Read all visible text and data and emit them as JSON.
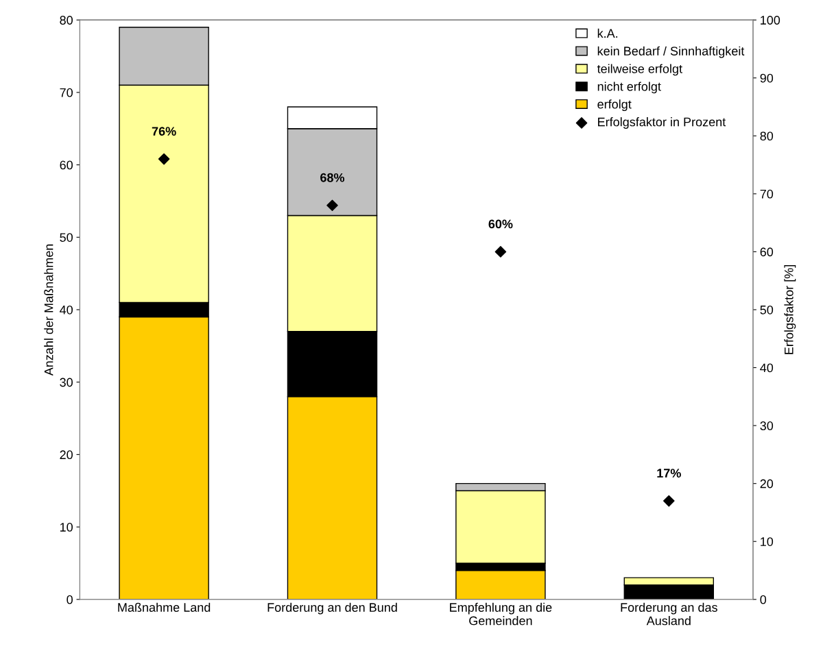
{
  "chart_data": {
    "type": "bar",
    "stacked": true,
    "ylabel": "Anzahl der Maßnahmen",
    "y2label": "Erfolgsfaktor [%]",
    "categories": [
      "Maßnahme Land",
      "Forderung an den Bund",
      "Empfehlung an die\nGemeinden",
      "Forderung an das\nAusland"
    ],
    "ylim": [
      0,
      80
    ],
    "yticks": [
      0,
      10,
      20,
      30,
      40,
      50,
      60,
      70,
      80
    ],
    "y2lim": [
      0,
      100
    ],
    "y2ticks": [
      0,
      10,
      20,
      30,
      40,
      50,
      60,
      70,
      80,
      90,
      100
    ],
    "legend": "top right",
    "grid": false,
    "series": [
      {
        "name": "erfolgt",
        "color": "#ffcc00",
        "values": [
          39,
          28,
          4,
          0
        ]
      },
      {
        "name": "nicht erfolgt",
        "color": "#000000",
        "values": [
          2,
          9,
          1,
          2
        ]
      },
      {
        "name": "teilweise erfolgt",
        "color": "#ffff99",
        "values": [
          30,
          16,
          10,
          1
        ]
      },
      {
        "name": "kein Bedarf / Sinnhaftigkeit",
        "color": "#c0c0c0",
        "values": [
          8,
          12,
          1,
          0
        ]
      },
      {
        "name": "k.A.",
        "color": "#ffffff",
        "values": [
          0,
          3,
          0,
          0
        ]
      },
      {
        "name": "Erfolgsfaktor in Prozent",
        "type": "scatter",
        "axis": "y2",
        "marker": "diamond",
        "color": "#000000",
        "values": [
          76,
          68,
          60,
          17
        ],
        "value_labels": [
          "76%",
          "68%",
          "60%",
          "17%"
        ]
      }
    ]
  }
}
